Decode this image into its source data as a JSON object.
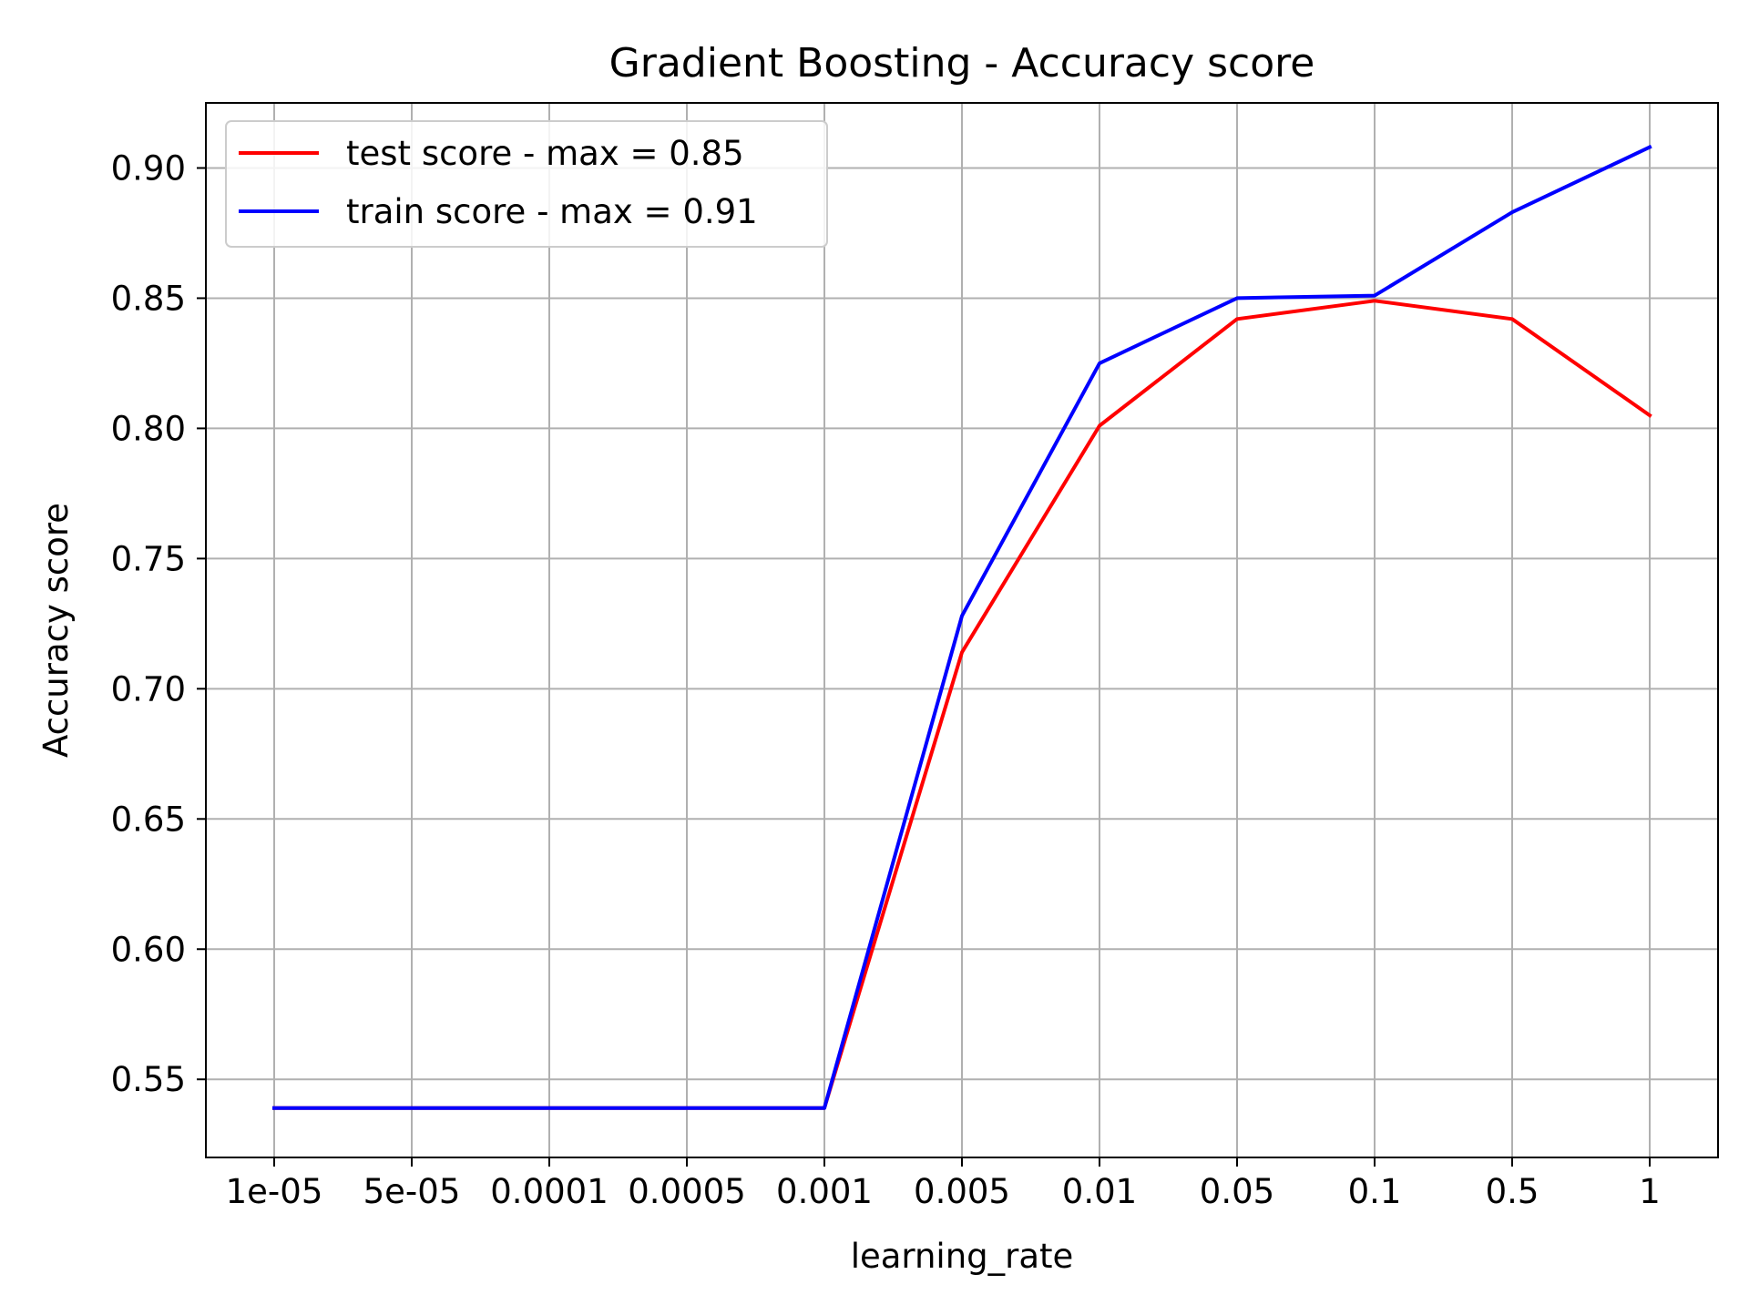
{
  "chart_data": {
    "type": "line",
    "title": "Gradient Boosting - Accuracy score",
    "xlabel": "learning_rate",
    "ylabel": "Accuracy score",
    "categories": [
      "1e-05",
      "5e-05",
      "0.0001",
      "0.0005",
      "0.001",
      "0.005",
      "0.01",
      "0.05",
      "0.1",
      "0.5",
      "1"
    ],
    "ylim": [
      0.52,
      0.925
    ],
    "yticks": [
      "0.55",
      "0.60",
      "0.65",
      "0.70",
      "0.75",
      "0.80",
      "0.85",
      "0.90"
    ],
    "grid": true,
    "legend_position": "top-left",
    "series": [
      {
        "name": "test score - max = 0.85",
        "color": "#ff0000",
        "values": [
          0.539,
          0.539,
          0.539,
          0.539,
          0.539,
          0.714,
          0.801,
          0.842,
          0.849,
          0.842,
          0.805
        ]
      },
      {
        "name": "train score - max = 0.91",
        "color": "#0000ff",
        "values": [
          0.539,
          0.539,
          0.539,
          0.539,
          0.539,
          0.728,
          0.825,
          0.85,
          0.851,
          0.883,
          0.908
        ]
      }
    ]
  }
}
